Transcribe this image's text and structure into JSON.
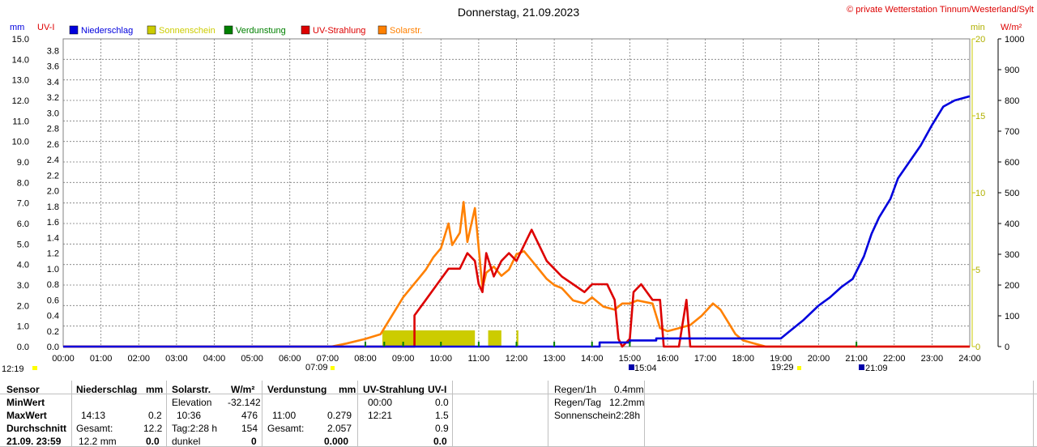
{
  "header": {
    "title": "Donnerstag, 21.09.2023",
    "copyright_symbol": "©",
    "copyright": "private Wetterstation Tinnum/Westerland/Sylt"
  },
  "axes": {
    "unit_mm": "mm",
    "unit_uvi": "UV-I",
    "unit_min": "min",
    "unit_wm2": "W/m²"
  },
  "legend": [
    {
      "label": "Niederschlag",
      "color": "#0000dd"
    },
    {
      "label": "Sonnenschein",
      "color": "#cccc00"
    },
    {
      "label": "Verdunstung",
      "color": "#008000"
    },
    {
      "label": "UV-Strahlung",
      "color": "#dd0000"
    },
    {
      "label": "Solarstr.",
      "color": "#ff8000"
    }
  ],
  "markers": {
    "left_time": "12:19",
    "sunrise": "07:09",
    "m1": "15:04",
    "sunset": "19:29",
    "m2": "21:09"
  },
  "chart_data": {
    "type": "line",
    "x_ticks": [
      "00:00",
      "01:00",
      "02:00",
      "03:00",
      "04:00",
      "05:00",
      "06:00",
      "07:00",
      "08:00",
      "09:00",
      "10:00",
      "11:00",
      "12:00",
      "13:00",
      "14:00",
      "15:00",
      "16:00",
      "17:00",
      "18:00",
      "19:00",
      "20:00",
      "21:00",
      "22:00",
      "23:00",
      "24:00"
    ],
    "y_mm_ticks": [
      "0.0",
      "1.0",
      "2.0",
      "3.0",
      "4.0",
      "5.0",
      "6.0",
      "7.0",
      "8.0",
      "9.0",
      "10.0",
      "11.0",
      "12.0",
      "13.0",
      "14.0",
      "15.0"
    ],
    "y_uvi_ticks": [
      "0.0",
      "0.2",
      "0.4",
      "0.6",
      "0.8",
      "1.0",
      "1.2",
      "1.4",
      "1.6",
      "1.8",
      "2.0",
      "2.2",
      "2.4",
      "2.6",
      "2.8",
      "3.0",
      "3.2",
      "3.4",
      "3.6",
      "3.8"
    ],
    "y_min_ticks": [
      "0",
      "5",
      "10",
      "15",
      "20"
    ],
    "y_wm2_ticks": [
      "0",
      "100",
      "200",
      "300",
      "400",
      "500",
      "600",
      "700",
      "800",
      "900",
      "1000"
    ],
    "ylim_mm": [
      0,
      15
    ],
    "ylim_uvi": [
      0,
      3.95
    ],
    "ylim_min": [
      0,
      20
    ],
    "ylim_wm2": [
      0,
      1000
    ],
    "grid": true,
    "series": [
      {
        "name": "Niederschlag",
        "unit": "mm",
        "color": "#0000dd",
        "points": [
          [
            0,
            0
          ],
          [
            14.2,
            0
          ],
          [
            14.2,
            0.2
          ],
          [
            15.0,
            0.2
          ],
          [
            15.0,
            0.3
          ],
          [
            15.7,
            0.3
          ],
          [
            15.7,
            0.4
          ],
          [
            19.0,
            0.4
          ],
          [
            19.2,
            0.7
          ],
          [
            19.6,
            1.3
          ],
          [
            20.0,
            2.0
          ],
          [
            20.3,
            2.4
          ],
          [
            20.6,
            2.9
          ],
          [
            20.9,
            3.3
          ],
          [
            21.2,
            4.4
          ],
          [
            21.4,
            5.5
          ],
          [
            21.6,
            6.3
          ],
          [
            21.9,
            7.2
          ],
          [
            22.1,
            8.2
          ],
          [
            22.4,
            9.0
          ],
          [
            22.7,
            9.8
          ],
          [
            23.0,
            10.8
          ],
          [
            23.3,
            11.7
          ],
          [
            23.6,
            12.0
          ],
          [
            24,
            12.2
          ]
        ]
      },
      {
        "name": "UV-Strahlung",
        "unit": "UV-I",
        "color": "#dd0000",
        "points": [
          [
            0,
            0
          ],
          [
            9.3,
            0
          ],
          [
            9.3,
            0.4
          ],
          [
            9.6,
            0.6
          ],
          [
            9.9,
            0.8
          ],
          [
            10.2,
            1.0
          ],
          [
            10.5,
            1.0
          ],
          [
            10.7,
            1.2
          ],
          [
            10.9,
            1.1
          ],
          [
            11.0,
            0.8
          ],
          [
            11.1,
            0.7
          ],
          [
            11.2,
            1.2
          ],
          [
            11.4,
            0.9
          ],
          [
            11.6,
            1.1
          ],
          [
            11.8,
            1.2
          ],
          [
            12.0,
            1.1
          ],
          [
            12.2,
            1.3
          ],
          [
            12.4,
            1.5
          ],
          [
            12.6,
            1.3
          ],
          [
            12.8,
            1.1
          ],
          [
            13.0,
            1.0
          ],
          [
            13.2,
            0.9
          ],
          [
            13.5,
            0.8
          ],
          [
            13.8,
            0.7
          ],
          [
            14.0,
            0.8
          ],
          [
            14.4,
            0.8
          ],
          [
            14.6,
            0.6
          ],
          [
            14.7,
            0.1
          ],
          [
            14.8,
            0.0
          ],
          [
            15.0,
            0.1
          ],
          [
            15.1,
            0.7
          ],
          [
            15.3,
            0.8
          ],
          [
            15.6,
            0.6
          ],
          [
            15.8,
            0.6
          ],
          [
            15.9,
            0.0
          ],
          [
            16.3,
            0.0
          ],
          [
            16.5,
            0.6
          ],
          [
            16.6,
            0.0
          ],
          [
            24,
            0
          ]
        ]
      },
      {
        "name": "Solarstr.",
        "unit": "W/m²",
        "color": "#ff8000",
        "points": [
          [
            0,
            0
          ],
          [
            7.1,
            0
          ],
          [
            7.5,
            10
          ],
          [
            8.0,
            25
          ],
          [
            8.4,
            40
          ],
          [
            8.6,
            80
          ],
          [
            8.8,
            120
          ],
          [
            9.0,
            160
          ],
          [
            9.2,
            190
          ],
          [
            9.4,
            220
          ],
          [
            9.6,
            250
          ],
          [
            9.8,
            290
          ],
          [
            10.0,
            320
          ],
          [
            10.1,
            360
          ],
          [
            10.2,
            400
          ],
          [
            10.3,
            330
          ],
          [
            10.5,
            370
          ],
          [
            10.6,
            470
          ],
          [
            10.7,
            340
          ],
          [
            10.9,
            450
          ],
          [
            11.0,
            320
          ],
          [
            11.1,
            190
          ],
          [
            11.2,
            240
          ],
          [
            11.4,
            260
          ],
          [
            11.6,
            230
          ],
          [
            11.8,
            250
          ],
          [
            12.0,
            300
          ],
          [
            12.2,
            310
          ],
          [
            12.4,
            280
          ],
          [
            12.6,
            250
          ],
          [
            12.8,
            220
          ],
          [
            13.0,
            200
          ],
          [
            13.2,
            190
          ],
          [
            13.5,
            150
          ],
          [
            13.8,
            140
          ],
          [
            14.0,
            160
          ],
          [
            14.3,
            130
          ],
          [
            14.6,
            120
          ],
          [
            14.8,
            140
          ],
          [
            15.0,
            140
          ],
          [
            15.2,
            150
          ],
          [
            15.6,
            140
          ],
          [
            15.8,
            60
          ],
          [
            16.0,
            50
          ],
          [
            16.3,
            60
          ],
          [
            16.6,
            70
          ],
          [
            16.9,
            100
          ],
          [
            17.2,
            140
          ],
          [
            17.4,
            120
          ],
          [
            17.6,
            80
          ],
          [
            17.8,
            40
          ],
          [
            18.0,
            20
          ],
          [
            18.3,
            10
          ],
          [
            18.6,
            0
          ],
          [
            24,
            0
          ]
        ]
      },
      {
        "name": "Sonnenschein",
        "unit": "min",
        "intervals": [
          [
            8.45,
            10.9
          ],
          [
            11.25,
            11.6
          ],
          [
            12.0,
            12.05
          ]
        ]
      },
      {
        "name": "Verdunstung",
        "unit": "mm",
        "color": "#008000",
        "ticks": [
          8.0,
          8.5,
          9.0,
          10.0,
          11.0,
          12.0,
          13.0,
          14.0,
          15.0,
          21.0
        ]
      }
    ]
  },
  "table": {
    "sensor": "Sensor",
    "minwert": "MinWert",
    "maxwert": "MaxWert",
    "durchschnitt": "Durchschnitt",
    "datetime": "21.09. 23:59",
    "n_head": "Niederschlag",
    "n_unit": "mm",
    "n_max_time": "14:13",
    "n_max": "0.2",
    "n_ges_label": "Gesamt:",
    "n_ges": "12.2",
    "n_cur": "12.2 mm",
    "n_cur_val": "0.0",
    "s_head": "Solarstr.",
    "s_unit": "W/m²",
    "s_elev_label": "Elevation",
    "s_elev": "-32.142",
    "s_max_time": "10:36",
    "s_max": "476",
    "s_tag_label": "Tag:2:28 h",
    "s_tag": "154",
    "s_dunkel": "dunkel",
    "s_cur": "0",
    "v_head": "Verdunstung",
    "v_unit": "mm",
    "v_max_time": "11:00",
    "v_max": "0.279",
    "v_ges_label": "Gesamt:",
    "v_ges": "2.057",
    "v_cur": "0.000",
    "u_head": "UV-Strahlung",
    "u_unit": "UV-I",
    "u_min_time": "00:00",
    "u_min": "0.0",
    "u_max_time": "12:21",
    "u_max": "1.5",
    "u_avg": "0.9",
    "u_cur": "0.0",
    "r1_label": "Regen/1h",
    "r1": "0.4mm",
    "rt_label": "Regen/Tag",
    "rt": "12.2mm",
    "ss_label": "Sonnenschein",
    "ss": "2:28h"
  }
}
